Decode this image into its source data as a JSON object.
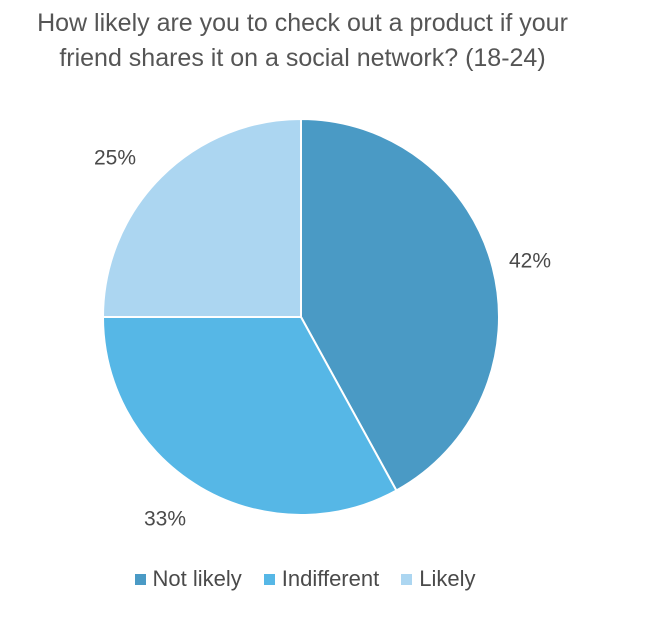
{
  "chart_data": {
    "type": "pie",
    "title": "How likely are you to check out a product if your friend shares it on a social network? (18-24)",
    "categories": [
      "Not likely",
      "Indifferent",
      "Likely"
    ],
    "values": [
      42,
      33,
      25
    ],
    "labels": [
      "42%",
      "33%",
      "25%"
    ],
    "colors": [
      "#4a9ac5",
      "#56b7e6",
      "#acd6f1"
    ],
    "legend_position": "bottom",
    "start_angle": "12 o'clock, clockwise"
  }
}
